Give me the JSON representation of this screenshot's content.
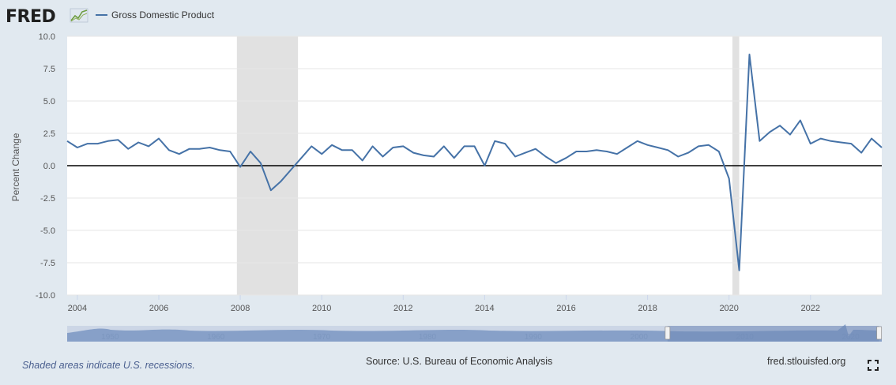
{
  "header": {
    "logo_text": "FRED",
    "logo_icon": "trend-chart-icon"
  },
  "footer": {
    "recession_note": "Shaded areas indicate U.S. recessions.",
    "source": "Source: U.S. Bureau of Economic Analysis",
    "url": "fred.stlouisfed.org",
    "fullscreen_icon": "fullscreen-icon"
  },
  "colors": {
    "series": "#4572a7",
    "recession": "#e1e1e1",
    "background": "#e1e9f0",
    "plot": "#ffffff",
    "zero_line": "#000000"
  },
  "navigator": {
    "labels": [
      "1950",
      "1960",
      "1970",
      "1980",
      "1990",
      "2000",
      "2010",
      "2020"
    ],
    "x_range": [
      1947,
      2024
    ],
    "selected_range": [
      2003.75,
      2023.75
    ]
  },
  "chart_data": {
    "type": "line",
    "title": "",
    "ylabel": "Percent Change",
    "xlabel": "",
    "ylim": [
      -10,
      10
    ],
    "xlim": [
      2003.75,
      2023.75
    ],
    "y_ticks": [
      "10.0",
      "7.5",
      "5.0",
      "2.5",
      "0.0",
      "-2.5",
      "-5.0",
      "-7.5",
      "-10.0"
    ],
    "x_ticks": [
      "2004",
      "2006",
      "2008",
      "2010",
      "2012",
      "2014",
      "2016",
      "2018",
      "2020",
      "2022"
    ],
    "legend_position": "top-left",
    "grid": true,
    "recessions": [
      [
        2007.917,
        2009.417
      ],
      [
        2020.083,
        2020.25
      ]
    ],
    "series": [
      {
        "name": "Gross Domestic Product",
        "x": [
          2003.75,
          2004.0,
          2004.25,
          2004.5,
          2004.75,
          2005.0,
          2005.25,
          2005.5,
          2005.75,
          2006.0,
          2006.25,
          2006.5,
          2006.75,
          2007.0,
          2007.25,
          2007.5,
          2007.75,
          2008.0,
          2008.25,
          2008.5,
          2008.75,
          2009.0,
          2009.25,
          2009.5,
          2009.75,
          2010.0,
          2010.25,
          2010.5,
          2010.75,
          2011.0,
          2011.25,
          2011.5,
          2011.75,
          2012.0,
          2012.25,
          2012.5,
          2012.75,
          2013.0,
          2013.25,
          2013.5,
          2013.75,
          2014.0,
          2014.25,
          2014.5,
          2014.75,
          2015.0,
          2015.25,
          2015.5,
          2015.75,
          2016.0,
          2016.25,
          2016.5,
          2016.75,
          2017.0,
          2017.25,
          2017.5,
          2017.75,
          2018.0,
          2018.25,
          2018.5,
          2018.75,
          2019.0,
          2019.25,
          2019.5,
          2019.75,
          2020.0,
          2020.25,
          2020.5,
          2020.75,
          2021.0,
          2021.25,
          2021.5,
          2021.75,
          2022.0,
          2022.25,
          2022.5,
          2022.75,
          2023.0,
          2023.25,
          2023.5,
          2023.75
        ],
        "values": [
          1.9,
          1.4,
          1.7,
          1.7,
          1.9,
          2.0,
          1.3,
          1.8,
          1.5,
          2.1,
          1.2,
          0.9,
          1.3,
          1.3,
          1.4,
          1.2,
          1.1,
          -0.1,
          1.1,
          0.2,
          -1.9,
          -1.2,
          -0.3,
          0.6,
          1.5,
          0.9,
          1.6,
          1.2,
          1.2,
          0.4,
          1.5,
          0.7,
          1.4,
          1.5,
          1.0,
          0.8,
          0.7,
          1.5,
          0.6,
          1.5,
          1.5,
          0.0,
          1.9,
          1.7,
          0.7,
          1.0,
          1.3,
          0.7,
          0.2,
          0.6,
          1.1,
          1.1,
          1.2,
          1.1,
          0.9,
          1.4,
          1.9,
          1.6,
          1.4,
          1.2,
          0.7,
          1.0,
          1.5,
          1.6,
          1.1,
          -1.0,
          -8.1,
          8.6,
          1.9,
          2.6,
          3.1,
          2.4,
          3.5,
          1.7,
          2.1,
          1.9,
          1.8,
          1.7,
          1.0,
          2.1,
          1.4
        ]
      }
    ]
  }
}
